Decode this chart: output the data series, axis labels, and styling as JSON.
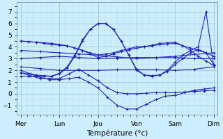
{
  "xlabel": "Température (°c)",
  "bg_color": "#cceeff",
  "grid_major_color": "#99cccc",
  "grid_minor_color": "#bbdddd",
  "line_color": "#2222bb",
  "ylim": [
    -1.8,
    7.8
  ],
  "yticks": [
    -1,
    0,
    1,
    2,
    3,
    4,
    5,
    6,
    7
  ],
  "day_labels": [
    "Mer",
    "Lun",
    "Jeu",
    "Ven",
    "Sam",
    "Dim"
  ],
  "day_x": [
    0,
    1,
    2,
    3,
    4,
    5
  ],
  "series_fine": [
    {
      "x": [
        0,
        0.2,
        0.4,
        0.6,
        0.8,
        1.0,
        1.2,
        1.4,
        1.6,
        1.8,
        2.0,
        2.2,
        2.4,
        2.6,
        2.8,
        3.0,
        3.2,
        3.4,
        3.6,
        3.8,
        4.0,
        4.2,
        4.4,
        4.6,
        4.8,
        5.0
      ],
      "y": [
        4.5,
        4.45,
        4.4,
        4.3,
        4.2,
        4.15,
        4.1,
        3.9,
        3.7,
        3.5,
        3.3,
        3.4,
        3.5,
        3.7,
        3.85,
        4.0,
        4.05,
        4.1,
        4.2,
        4.25,
        4.3,
        4.1,
        3.9,
        3.7,
        3.5,
        3.2
      ]
    },
    {
      "x": [
        0,
        0.2,
        0.4,
        0.6,
        0.8,
        1.0,
        1.2,
        1.4,
        1.6,
        1.8,
        2.0,
        2.2,
        2.4,
        2.6,
        2.8,
        3.0,
        3.2,
        3.4,
        3.6,
        3.8,
        4.0,
        4.2,
        4.4,
        4.6,
        4.8,
        5.0
      ],
      "y": [
        4.5,
        4.45,
        4.4,
        4.35,
        4.3,
        4.2,
        4.1,
        3.9,
        3.7,
        3.4,
        3.1,
        3.2,
        3.4,
        3.6,
        3.75,
        3.9,
        4.0,
        4.15,
        4.3,
        4.35,
        4.4,
        4.1,
        3.7,
        3.2,
        2.8,
        2.4
      ]
    },
    {
      "x": [
        0,
        0.5,
        1.0,
        1.5,
        2.0,
        2.5,
        3.0,
        3.5,
        4.0,
        4.5,
        5.0
      ],
      "y": [
        3.7,
        3.6,
        3.5,
        3.4,
        3.3,
        3.15,
        3.0,
        3.1,
        3.2,
        3.35,
        3.5
      ]
    },
    {
      "x": [
        0,
        0.5,
        1.0,
        1.5,
        2.0,
        2.5,
        3.0,
        3.5,
        4.0,
        4.5,
        5.0
      ],
      "y": [
        3.0,
        3.1,
        3.2,
        3.1,
        3.0,
        3.05,
        3.1,
        3.1,
        3.1,
        3.0,
        3.0
      ]
    },
    {
      "x": [
        0,
        0.5,
        1.0,
        1.5,
        2.0,
        2.5,
        3.0,
        3.5,
        4.0,
        4.5,
        5.0
      ],
      "y": [
        2.3,
        2.15,
        2.0,
        2.0,
        2.0,
        2.05,
        2.1,
        2.05,
        2.0,
        2.1,
        2.3
      ]
    },
    {
      "x": [
        0,
        0.25,
        0.5,
        0.75,
        1.0,
        1.25,
        1.5,
        1.75,
        2.0,
        2.25,
        2.5,
        2.75,
        3.0,
        3.25,
        3.5,
        3.75,
        4.0,
        4.25,
        4.5,
        4.75,
        5.0
      ],
      "y": [
        2.0,
        1.7,
        1.4,
        1.2,
        1.2,
        1.3,
        1.4,
        1.0,
        0.5,
        -0.3,
        -1.0,
        -1.3,
        -1.3,
        -0.9,
        -0.5,
        -0.2,
        -0.15,
        0.1,
        0.3,
        0.4,
        0.5
      ]
    },
    {
      "x": [
        0,
        0.25,
        0.5,
        0.75,
        1.0,
        1.25,
        1.5,
        1.75,
        2.0,
        2.25,
        2.5,
        2.75,
        3.0,
        3.25,
        3.5,
        3.75,
        4.0,
        4.25,
        4.5,
        4.75,
        5.0
      ],
      "y": [
        1.8,
        1.55,
        1.3,
        1.3,
        1.3,
        1.7,
        2.1,
        1.6,
        1.1,
        0.5,
        0.1,
        0.0,
        0.0,
        0.05,
        0.1,
        0.1,
        0.1,
        0.15,
        0.2,
        0.25,
        0.3
      ]
    },
    {
      "x": [
        0,
        0.2,
        0.4,
        0.6,
        0.8,
        1.0,
        1.2,
        1.4,
        1.6,
        1.8,
        2.0,
        2.2,
        2.4,
        2.6,
        2.8,
        3.0,
        3.2,
        3.4,
        3.6,
        3.8,
        4.0,
        4.2,
        4.4,
        4.6,
        4.8,
        5.0
      ],
      "y": [
        1.8,
        1.7,
        1.6,
        1.55,
        1.5,
        1.7,
        2.2,
        3.2,
        4.5,
        5.5,
        6.0,
        6.0,
        5.5,
        4.5,
        3.3,
        2.0,
        1.6,
        1.5,
        1.6,
        1.9,
        2.5,
        3.0,
        3.5,
        3.8,
        3.5,
        2.5
      ]
    },
    {
      "x": [
        0,
        0.2,
        0.4,
        0.6,
        0.8,
        1.0,
        1.2,
        1.4,
        1.6,
        1.8,
        2.0,
        2.2,
        2.4,
        2.6,
        2.8,
        3.0,
        3.2,
        3.4,
        3.6,
        3.8,
        4.0,
        4.2,
        4.4,
        4.6,
        4.8,
        5.0
      ],
      "y": [
        1.5,
        1.5,
        1.5,
        1.5,
        1.5,
        1.75,
        2.3,
        3.3,
        4.6,
        5.5,
        6.0,
        6.0,
        5.5,
        4.5,
        3.3,
        2.1,
        1.6,
        1.55,
        1.6,
        2.0,
        2.7,
        3.3,
        3.7,
        4.0,
        7.0,
        2.4
      ]
    }
  ]
}
